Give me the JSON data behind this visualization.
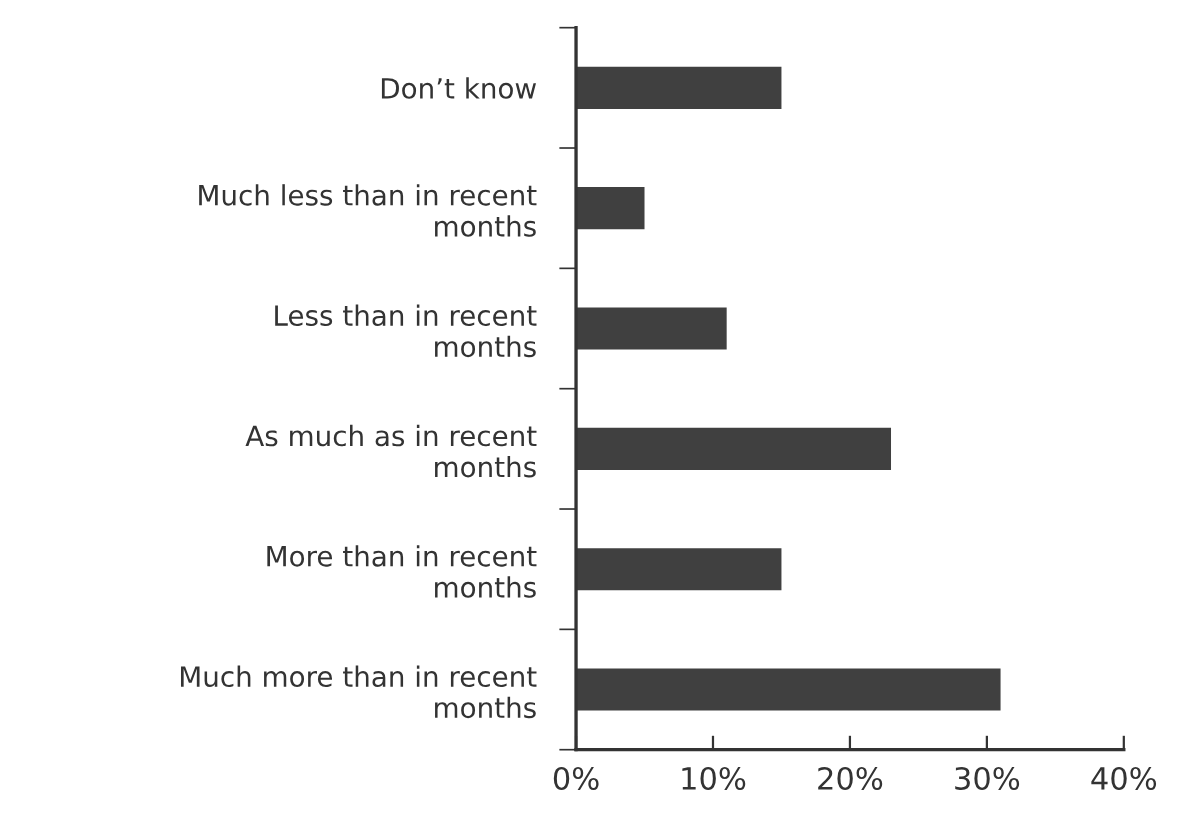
{
  "chart_data": {
    "type": "bar",
    "orientation": "horizontal",
    "categories": [
      "Don’t know",
      "Much less than in recent\nmonths",
      "Less than in recent\nmonths",
      "As much as in recent\nmonths",
      "More than in recent\nmonths",
      "Much more than in recent\nmonths"
    ],
    "values": [
      15,
      5,
      11,
      23,
      15,
      31
    ],
    "color": "#404040",
    "xlim": [
      0,
      40
    ],
    "xticks": [
      {
        "value": 0,
        "label": "0%"
      },
      {
        "value": 10,
        "label": "10%"
      },
      {
        "value": 20,
        "label": "20%"
      },
      {
        "value": 30,
        "label": "30%"
      },
      {
        "value": 40,
        "label": "40%"
      }
    ],
    "grid": false,
    "legend": false
  }
}
